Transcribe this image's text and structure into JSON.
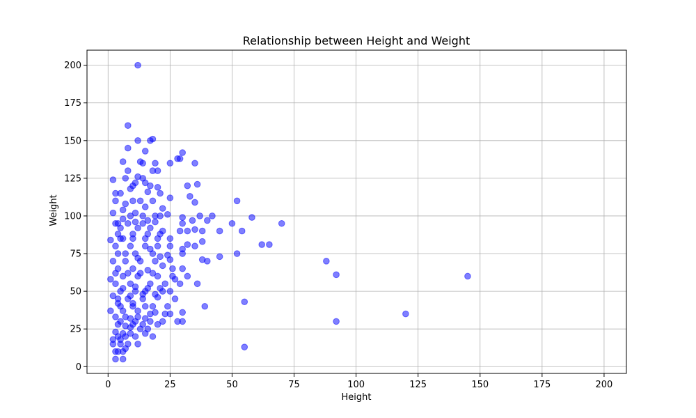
{
  "chart_data": {
    "type": "scatter",
    "title": "Relationship between Height and Weight",
    "xlabel": "Height",
    "ylabel": "Weight",
    "xlim": [
      -8.5,
      209
    ],
    "ylim": [
      -4.5,
      210
    ],
    "xticks": [
      0,
      25,
      50,
      75,
      100,
      125,
      150,
      175,
      200
    ],
    "yticks": [
      0,
      25,
      50,
      75,
      100,
      125,
      150,
      175,
      200
    ],
    "grid": true,
    "marker_color": "#0000ff",
    "marker_alpha": 0.5,
    "points": [
      [
        12,
        200
      ],
      [
        8,
        160
      ],
      [
        18,
        151
      ],
      [
        12,
        150
      ],
      [
        17,
        150
      ],
      [
        8,
        145
      ],
      [
        15,
        143
      ],
      [
        30,
        142
      ],
      [
        6,
        136
      ],
      [
        13,
        136
      ],
      [
        14,
        135
      ],
      [
        19,
        135
      ],
      [
        25,
        135
      ],
      [
        35,
        135
      ],
      [
        28,
        138
      ],
      [
        29,
        138
      ],
      [
        8,
        130
      ],
      [
        18,
        130
      ],
      [
        20,
        130
      ],
      [
        12,
        126
      ],
      [
        2,
        124
      ],
      [
        7,
        125
      ],
      [
        14,
        125
      ],
      [
        15,
        122
      ],
      [
        11,
        122
      ],
      [
        36,
        121
      ],
      [
        32,
        120
      ],
      [
        10,
        120
      ],
      [
        17,
        120
      ],
      [
        20,
        119
      ],
      [
        9,
        118
      ],
      [
        3,
        115
      ],
      [
        5,
        115
      ],
      [
        16,
        116
      ],
      [
        21,
        115
      ],
      [
        33,
        113
      ],
      [
        25,
        112
      ],
      [
        52,
        110
      ],
      [
        3,
        110
      ],
      [
        10,
        110
      ],
      [
        13,
        110
      ],
      [
        18,
        110
      ],
      [
        35,
        109
      ],
      [
        7,
        108
      ],
      [
        15,
        106
      ],
      [
        22,
        105
      ],
      [
        2,
        102
      ],
      [
        6,
        104
      ],
      [
        11,
        102
      ],
      [
        24,
        101
      ],
      [
        37,
        100
      ],
      [
        42,
        100
      ],
      [
        30,
        99
      ],
      [
        58,
        99
      ],
      [
        40,
        97
      ],
      [
        34,
        97
      ],
      [
        30,
        95
      ],
      [
        50,
        95
      ],
      [
        70,
        95
      ],
      [
        3,
        95
      ],
      [
        8,
        95
      ],
      [
        14,
        95
      ],
      [
        19,
        96
      ],
      [
        5,
        92
      ],
      [
        12,
        92
      ],
      [
        17,
        92
      ],
      [
        22,
        90
      ],
      [
        29,
        90
      ],
      [
        32,
        90
      ],
      [
        35,
        91
      ],
      [
        38,
        90
      ],
      [
        45,
        90
      ],
      [
        54,
        90
      ],
      [
        4,
        88
      ],
      [
        10,
        88
      ],
      [
        16,
        88
      ],
      [
        21,
        88
      ],
      [
        1,
        84
      ],
      [
        6,
        85
      ],
      [
        25,
        85
      ],
      [
        38,
        83
      ],
      [
        62,
        81
      ],
      [
        65,
        81
      ],
      [
        32,
        81
      ],
      [
        25,
        80
      ],
      [
        35,
        80
      ],
      [
        3,
        80
      ],
      [
        9,
        80
      ],
      [
        15,
        80
      ],
      [
        20,
        80
      ],
      [
        30,
        78
      ],
      [
        52,
        75
      ],
      [
        30,
        75
      ],
      [
        4,
        75
      ],
      [
        11,
        75
      ],
      [
        18,
        75
      ],
      [
        24,
        74
      ],
      [
        45,
        73
      ],
      [
        38,
        71
      ],
      [
        40,
        70
      ],
      [
        88,
        70
      ],
      [
        25,
        71
      ],
      [
        2,
        70
      ],
      [
        7,
        70
      ],
      [
        13,
        70
      ],
      [
        19,
        70
      ],
      [
        22,
        67
      ],
      [
        26,
        65
      ],
      [
        30,
        65
      ],
      [
        4,
        65
      ],
      [
        10,
        65
      ],
      [
        16,
        64
      ],
      [
        92,
        61
      ],
      [
        145,
        60
      ],
      [
        32,
        60
      ],
      [
        26,
        60
      ],
      [
        1,
        58
      ],
      [
        6,
        60
      ],
      [
        12,
        60
      ],
      [
        20,
        60
      ],
      [
        27,
        58
      ],
      [
        29,
        55
      ],
      [
        36,
        55
      ],
      [
        3,
        55
      ],
      [
        9,
        55
      ],
      [
        17,
        55
      ],
      [
        23,
        55
      ],
      [
        5,
        50
      ],
      [
        11,
        50
      ],
      [
        15,
        50
      ],
      [
        22,
        50
      ],
      [
        25,
        50
      ],
      [
        2,
        47
      ],
      [
        8,
        45
      ],
      [
        14,
        45
      ],
      [
        20,
        46
      ],
      [
        27,
        45
      ],
      [
        55,
        43
      ],
      [
        4,
        42
      ],
      [
        10,
        42
      ],
      [
        18,
        40
      ],
      [
        24,
        40
      ],
      [
        39,
        40
      ],
      [
        30,
        36
      ],
      [
        25,
        35
      ],
      [
        120,
        35
      ],
      [
        1,
        37
      ],
      [
        6,
        37
      ],
      [
        12,
        37
      ],
      [
        19,
        36
      ],
      [
        23,
        35
      ],
      [
        3,
        33
      ],
      [
        9,
        32
      ],
      [
        15,
        32
      ],
      [
        28,
        30
      ],
      [
        30,
        30
      ],
      [
        92,
        30
      ],
      [
        5,
        30
      ],
      [
        11,
        30
      ],
      [
        17,
        30
      ],
      [
        20,
        28
      ],
      [
        22,
        30
      ],
      [
        16,
        25
      ],
      [
        7,
        27
      ],
      [
        13,
        25
      ],
      [
        3,
        23
      ],
      [
        9,
        22
      ],
      [
        15,
        22
      ],
      [
        18,
        20
      ],
      [
        4,
        20
      ],
      [
        7,
        20
      ],
      [
        2,
        15
      ],
      [
        5,
        15
      ],
      [
        8,
        15
      ],
      [
        12,
        15
      ],
      [
        3,
        10
      ],
      [
        6,
        10
      ],
      [
        4,
        10
      ],
      [
        55,
        13
      ],
      [
        3,
        5
      ],
      [
        6,
        5
      ],
      [
        7,
        12
      ],
      [
        2,
        18
      ],
      [
        10,
        28
      ],
      [
        4,
        95
      ],
      [
        9,
        100
      ],
      [
        14,
        100
      ],
      [
        19,
        100
      ],
      [
        6,
        98
      ],
      [
        11,
        96
      ],
      [
        16,
        97
      ],
      [
        21,
        100
      ],
      [
        5,
        85
      ],
      [
        10,
        85
      ],
      [
        15,
        85
      ],
      [
        20,
        85
      ],
      [
        7,
        75
      ],
      [
        12,
        72
      ],
      [
        17,
        78
      ],
      [
        21,
        73
      ],
      [
        3,
        62
      ],
      [
        8,
        62
      ],
      [
        13,
        62
      ],
      [
        18,
        62
      ],
      [
        6,
        52
      ],
      [
        11,
        53
      ],
      [
        16,
        52
      ],
      [
        21,
        52
      ],
      [
        4,
        45
      ],
      [
        9,
        47
      ],
      [
        14,
        48
      ],
      [
        19,
        48
      ],
      [
        5,
        40
      ],
      [
        10,
        40
      ],
      [
        15,
        40
      ],
      [
        7,
        33
      ],
      [
        12,
        33
      ],
      [
        17,
        35
      ],
      [
        4,
        28
      ],
      [
        9,
        26
      ],
      [
        14,
        28
      ],
      [
        6,
        22
      ],
      [
        11,
        20
      ],
      [
        5,
        18
      ]
    ]
  }
}
